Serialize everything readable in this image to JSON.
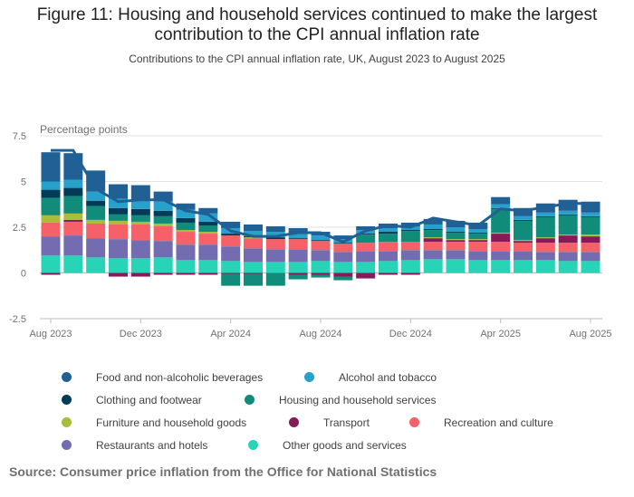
{
  "title_line1": "Figure 11: Housing and household services continued to make the largest",
  "title_line2": "contribution to the CPI annual inflation rate",
  "subtitle": "Contributions to the CPI annual inflation rate, UK, August 2023 to August 2025",
  "source": "Source: Consumer price inflation from the Office for National Statistics",
  "chart_data": {
    "type": "bar",
    "stacked": true,
    "ylabel": "Percentage points",
    "ylim": [
      -2.5,
      7.5
    ],
    "yticks": [
      -2.5,
      0,
      2.5,
      5,
      7.5
    ],
    "ytick_labels": [
      "-2.5",
      "0",
      "2.5",
      "5",
      "7.5"
    ],
    "xtick_labels": [
      "Aug 2023",
      "Dec 2023",
      "Apr 2024",
      "Aug 2024",
      "Dec 2024",
      "Apr 2025",
      "Aug 2025"
    ],
    "xtick_index": [
      0,
      4,
      8,
      12,
      16,
      20,
      24
    ],
    "grid": true,
    "legend_position": "bottom",
    "categories": [
      "Aug 2023",
      "Sep 2023",
      "Oct 2023",
      "Nov 2023",
      "Dec 2023",
      "Jan 2024",
      "Feb 2024",
      "Mar 2024",
      "Apr 2024",
      "May 2024",
      "Jun 2024",
      "Jul 2024",
      "Aug 2024",
      "Sep 2024",
      "Oct 2024",
      "Nov 2024",
      "Dec 2024",
      "Jan 2025",
      "Feb 2025",
      "Mar 2025",
      "Apr 2025",
      "May 2025",
      "Jun 2025",
      "Jul 2025",
      "Aug 2025"
    ],
    "series": [
      {
        "name": "Other goods and services",
        "color": "#27d4b5",
        "values": [
          0.95,
          0.95,
          0.85,
          0.8,
          0.8,
          0.85,
          0.7,
          0.7,
          0.65,
          0.6,
          0.6,
          0.6,
          0.65,
          0.6,
          0.6,
          0.65,
          0.7,
          0.75,
          0.75,
          0.7,
          0.7,
          0.7,
          0.7,
          0.65,
          0.65
        ]
      },
      {
        "name": "Restaurants and hotels",
        "color": "#746cb1",
        "values": [
          1.05,
          1.1,
          1.05,
          1.05,
          1.0,
          0.9,
          0.85,
          0.85,
          0.8,
          0.75,
          0.7,
          0.7,
          0.6,
          0.55,
          0.6,
          0.55,
          0.55,
          0.5,
          0.5,
          0.5,
          0.5,
          0.5,
          0.45,
          0.5,
          0.5
        ]
      },
      {
        "name": "Recreation and culture",
        "color": "#f66068",
        "values": [
          0.75,
          0.75,
          0.8,
          0.8,
          0.85,
          0.8,
          0.7,
          0.6,
          0.6,
          0.55,
          0.55,
          0.55,
          0.5,
          0.45,
          0.45,
          0.5,
          0.45,
          0.45,
          0.45,
          0.5,
          0.5,
          0.45,
          0.5,
          0.5,
          0.5
        ]
      },
      {
        "name": "Transport",
        "color": "#871a5b",
        "values": [
          -0.1,
          0.1,
          0.0,
          -0.2,
          -0.2,
          -0.1,
          -0.1,
          -0.1,
          -0.05,
          -0.05,
          0.0,
          -0.1,
          -0.1,
          -0.2,
          -0.3,
          -0.1,
          -0.1,
          0.2,
          0.1,
          0.1,
          0.45,
          0.1,
          0.25,
          0.4,
          0.35
        ]
      },
      {
        "name": "Furniture and household goods",
        "color": "#a8bd3a",
        "values": [
          0.4,
          0.35,
          0.2,
          0.2,
          0.15,
          0.15,
          0.1,
          0.1,
          0.0,
          0.05,
          0.0,
          0.0,
          0.0,
          0.0,
          0.0,
          0.0,
          0.0,
          0.05,
          0.05,
          0.05,
          0.05,
          0.05,
          0.05,
          0.05,
          0.1
        ]
      },
      {
        "name": "Housing and household services",
        "color": "#118c7b",
        "values": [
          0.95,
          0.95,
          0.75,
          0.35,
          0.35,
          0.4,
          0.4,
          0.35,
          -0.65,
          -0.65,
          -0.7,
          -0.25,
          -0.15,
          -0.2,
          0.45,
          0.45,
          0.6,
          0.4,
          0.35,
          0.3,
          1.3,
          1.05,
          1.1,
          1.05,
          0.95
        ]
      },
      {
        "name": "Clothing and footwear",
        "color": "#003c57",
        "values": [
          0.45,
          0.45,
          0.3,
          0.35,
          0.35,
          0.3,
          0.25,
          0.2,
          0.1,
          0.05,
          0.1,
          0.05,
          0.05,
          0.05,
          0.05,
          0.1,
          0.05,
          0.05,
          0.05,
          0.05,
          0.05,
          0.05,
          0.05,
          0.05,
          0.05
        ]
      },
      {
        "name": "Alcohol and tobacco",
        "color": "#27a0cc",
        "values": [
          0.45,
          0.45,
          0.5,
          0.5,
          0.5,
          0.5,
          0.45,
          0.45,
          0.3,
          0.3,
          0.3,
          0.3,
          0.25,
          0.2,
          0.2,
          0.2,
          0.2,
          0.25,
          0.25,
          0.2,
          0.2,
          0.2,
          0.2,
          0.2,
          0.2
        ]
      },
      {
        "name": "Food and non-alcoholic beverages",
        "color": "#206095",
        "values": [
          1.6,
          1.45,
          1.15,
          0.8,
          0.8,
          0.55,
          0.35,
          0.3,
          0.35,
          0.35,
          0.3,
          0.25,
          0.2,
          0.2,
          0.2,
          0.25,
          0.2,
          0.3,
          0.35,
          0.35,
          0.4,
          0.45,
          0.5,
          0.6,
          0.6
        ]
      }
    ],
    "line": {
      "name": "CPI annual inflation rate",
      "color": "#206095",
      "values": [
        6.7,
        6.7,
        4.6,
        3.9,
        4.0,
        4.0,
        3.4,
        3.2,
        2.3,
        2.0,
        2.0,
        2.2,
        2.2,
        1.7,
        2.3,
        2.6,
        2.5,
        3.0,
        2.8,
        2.6,
        3.5,
        3.4,
        3.6,
        3.8,
        3.8
      ]
    },
    "legend": [
      {
        "name": "Food and non-alcoholic beverages",
        "color": "#206095"
      },
      {
        "name": "Alcohol and tobacco",
        "color": "#27a0cc"
      },
      {
        "name": "Clothing and footwear",
        "color": "#003c57"
      },
      {
        "name": "Housing and household services",
        "color": "#118c7b"
      },
      {
        "name": "Furniture and household goods",
        "color": "#a8bd3a"
      },
      {
        "name": "Transport",
        "color": "#871a5b"
      },
      {
        "name": "Recreation and culture",
        "color": "#f66068"
      },
      {
        "name": "Restaurants and hotels",
        "color": "#746cb1"
      },
      {
        "name": "Other goods and services",
        "color": "#27d4b5"
      }
    ]
  }
}
